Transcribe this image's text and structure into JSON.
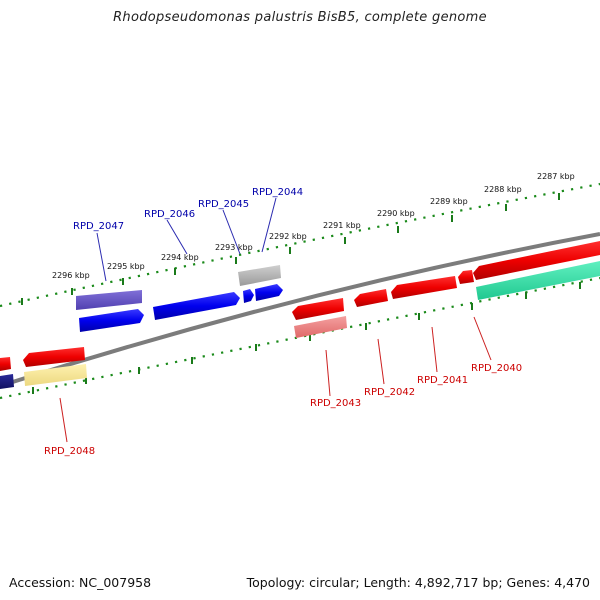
{
  "title": "Rhodopseudomonas palustris BisB5, complete genome",
  "footer": {
    "accession": "Accession: NC_007958",
    "summary": "Topology: circular; Length: 4,892,717 bp; Genes: 4,470"
  },
  "colors": {
    "forward_label": "#0000aa",
    "reverse_label": "#cc0000",
    "backbone": "#808080",
    "ticks": "#1a7a1a"
  },
  "upper_ticks": [
    {
      "label": "2296 kbp"
    },
    {
      "label": "2295 kbp"
    },
    {
      "label": "2294 kbp"
    },
    {
      "label": "2293 kbp"
    },
    {
      "label": "2292 kbp"
    },
    {
      "label": "2291 kbp"
    },
    {
      "label": "2290 kbp"
    },
    {
      "label": "2289 kbp"
    },
    {
      "label": "2288 kbp"
    },
    {
      "label": "2287 kbp"
    }
  ],
  "forward_gene_labels": [
    {
      "label": "RPD_2047"
    },
    {
      "label": "RPD_2046"
    },
    {
      "label": "RPD_2045"
    },
    {
      "label": "RPD_2044"
    }
  ],
  "reverse_gene_labels": [
    {
      "label": "RPD_2048"
    },
    {
      "label": "RPD_2043"
    },
    {
      "label": "RPD_2042"
    },
    {
      "label": "RPD_2041"
    },
    {
      "label": "RPD_2040"
    }
  ]
}
